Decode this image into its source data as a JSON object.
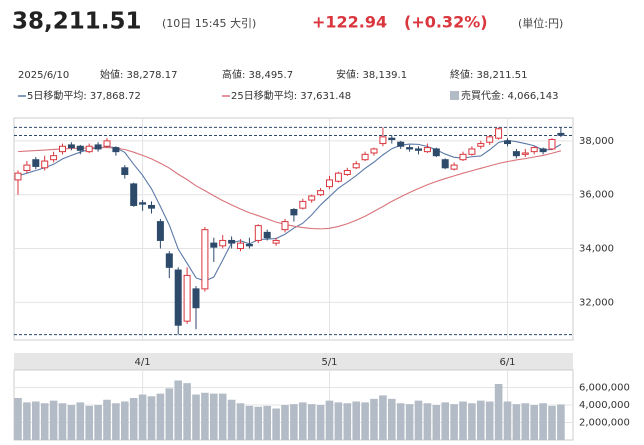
{
  "header": {
    "price": "38,211.51",
    "time": "(10日 15:45 大引)",
    "change": "+122.94",
    "change_pct": "(+0.32%)",
    "unit": "(単位:円)",
    "date": "2025/6/10",
    "open": "始値: 38,278.17",
    "high": "高値: 38,495.7",
    "low": "安値: 38,139.1",
    "close": "終値: 38,211.51"
  },
  "chart_data": {
    "type": "candlestick",
    "categories": [
      null,
      null,
      null,
      null,
      null,
      null,
      null,
      null,
      null,
      null,
      null,
      null,
      null,
      null,
      "4/1",
      null,
      null,
      null,
      null,
      null,
      null,
      null,
      null,
      null,
      null,
      null,
      null,
      null,
      null,
      null,
      null,
      null,
      null,
      null,
      null,
      "5/1",
      null,
      null,
      null,
      null,
      null,
      null,
      null,
      null,
      null,
      null,
      null,
      null,
      null,
      null,
      null,
      null,
      null,
      null,
      null,
      "6/1",
      null,
      null,
      null,
      null,
      null,
      null
    ],
    "candles": {
      "up_color": "#d9363e",
      "down_color": "#2e4a6b",
      "open": [
        36550,
        36900,
        37300,
        37000,
        37300,
        37600,
        37850,
        37800,
        37600,
        37850,
        37800,
        37750,
        37000,
        36400,
        35700,
        35600,
        35000,
        33800,
        33200,
        31300,
        32500,
        32500,
        34200,
        34100,
        34300,
        34000,
        34150,
        34300,
        34600,
        34200,
        34700,
        35450,
        35500,
        35800,
        36000,
        36300,
        36500,
        36750,
        37000,
        37300,
        37550,
        37900,
        38100,
        37950,
        37750,
        37700,
        37600,
        37700,
        37300,
        36950,
        37300,
        37500,
        37800,
        37950,
        38100,
        38000,
        37600,
        37500,
        37600,
        37700,
        37700,
        38278.17
      ],
      "high": [
        36900,
        37250,
        37400,
        37450,
        37600,
        37900,
        37950,
        37850,
        37900,
        37950,
        38100,
        37800,
        37100,
        36450,
        35800,
        35750,
        35100,
        33900,
        33300,
        33300,
        32600,
        34800,
        34400,
        34500,
        34450,
        34350,
        34400,
        34900,
        34700,
        34400,
        35100,
        35500,
        35850,
        36000,
        36250,
        36700,
        36850,
        37000,
        37250,
        37600,
        37750,
        38500,
        38200,
        38000,
        37850,
        37800,
        37900,
        37750,
        37350,
        37200,
        37600,
        37800,
        38000,
        38200,
        38500,
        38100,
        37700,
        37700,
        37800,
        37750,
        38100,
        38495.7
      ],
      "low": [
        36000,
        36800,
        36950,
        36900,
        37200,
        37500,
        37650,
        37500,
        37550,
        37600,
        37750,
        37450,
        36600,
        35550,
        35400,
        35300,
        34000,
        32900,
        30800,
        31200,
        31000,
        32400,
        33500,
        34000,
        34000,
        33900,
        34000,
        34200,
        34300,
        34100,
        34600,
        35000,
        35450,
        35700,
        35950,
        36200,
        36450,
        36700,
        36950,
        37250,
        37450,
        37800,
        37900,
        37700,
        37600,
        37500,
        37550,
        37400,
        36950,
        36900,
        37250,
        37450,
        37700,
        37850,
        38050,
        37800,
        37350,
        37400,
        37500,
        37500,
        37650,
        38139.1
      ],
      "close": [
        36800,
        37100,
        37050,
        37250,
        37450,
        37800,
        37750,
        37650,
        37800,
        37700,
        38000,
        37600,
        36750,
        35600,
        35650,
        35500,
        34300,
        33300,
        31150,
        33000,
        31800,
        34700,
        34050,
        34300,
        34200,
        34200,
        34100,
        34850,
        34400,
        34300,
        35000,
        35250,
        35750,
        35950,
        36150,
        36550,
        36800,
        36900,
        37150,
        37500,
        37700,
        38150,
        38050,
        37800,
        37700,
        37650,
        37750,
        37450,
        37000,
        37100,
        37500,
        37700,
        37900,
        38150,
        38450,
        37900,
        37450,
        37550,
        37750,
        37600,
        38050,
        38211.51
      ]
    },
    "series": [
      {
        "name": "5日移動平均: 37,868.72",
        "color": "#5b7aa8",
        "values": [
          36700,
          36800,
          36900,
          37000,
          37130,
          37330,
          37460,
          37580,
          37690,
          37740,
          37780,
          37750,
          37570,
          37130,
          36720,
          36220,
          35560,
          34870,
          33980,
          33450,
          32910,
          32790,
          32940,
          33570,
          34210,
          34290,
          34170,
          34330,
          34350,
          34370,
          34530,
          34760,
          34940,
          35250,
          35620,
          35930,
          36240,
          36470,
          36710,
          36980,
          37210,
          37480,
          37710,
          37840,
          37880,
          37870,
          37790,
          37670,
          37510,
          37390,
          37360,
          37410,
          37440,
          37670,
          37940,
          38020,
          37970,
          37900,
          37820,
          37660,
          37680,
          37868.72
        ]
      },
      {
        "name": "25日移動平均: 37,631.48",
        "color": "#d9737b",
        "values": [
          37600,
          37620,
          37640,
          37660,
          37680,
          37700,
          37720,
          37730,
          37740,
          37750,
          37750,
          37730,
          37680,
          37580,
          37460,
          37330,
          37170,
          36990,
          36760,
          36560,
          36330,
          36150,
          35960,
          35780,
          35620,
          35470,
          35330,
          35220,
          35100,
          34980,
          34900,
          34830,
          34780,
          34740,
          34730,
          34750,
          34820,
          34920,
          35050,
          35200,
          35380,
          35560,
          35750,
          35920,
          36080,
          36230,
          36370,
          36490,
          36600,
          36700,
          36800,
          36890,
          36980,
          37070,
          37160,
          37230,
          37290,
          37340,
          37400,
          37460,
          37540,
          37631.48
        ]
      }
    ],
    "volume": {
      "name": "売買代金: 4,066,143",
      "color": "#b3bcc6",
      "values": [
        4800000,
        4300000,
        4400000,
        4200000,
        4500000,
        4200000,
        4000000,
        4300000,
        3900000,
        4000000,
        4600000,
        4200000,
        4400000,
        4800000,
        5200000,
        5000000,
        5300000,
        5900000,
        6800000,
        6500000,
        5200000,
        5400000,
        5300000,
        5300000,
        4600000,
        4200000,
        3900000,
        3800000,
        3900000,
        3600000,
        4000000,
        4100000,
        4300000,
        4100000,
        4000000,
        4500000,
        4300000,
        4200000,
        4400000,
        4300000,
        4700000,
        5100000,
        4700000,
        4200000,
        4100000,
        4500000,
        4200000,
        4000000,
        4300000,
        4100000,
        4400000,
        4200000,
        4500000,
        4400000,
        6400000,
        4400000,
        4100000,
        4200000,
        4000000,
        4200000,
        3900000,
        4066143
      ],
      "ylim": [
        0,
        8000000
      ],
      "yticks": [
        {
          "value": 2000000,
          "label": "2,000,000"
        },
        {
          "value": 4000000,
          "label": "4,000,000"
        },
        {
          "value": 6000000,
          "label": "6,000,000"
        }
      ]
    },
    "ylim": [
      30600,
      38850
    ],
    "yticks": [
      {
        "value": 32000,
        "label": "32,000"
      },
      {
        "value": 34000,
        "label": "34,000"
      },
      {
        "value": 36000,
        "label": "36,000"
      },
      {
        "value": 38000,
        "label": "38,000"
      }
    ],
    "reference_lines": [
      38500,
      38200,
      30800
    ],
    "grid": true
  }
}
